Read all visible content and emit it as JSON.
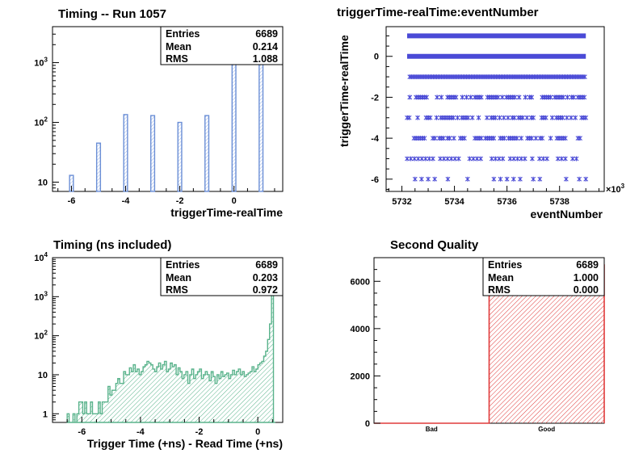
{
  "chart_data": [
    {
      "type": "bar",
      "title": "Timing -- Run 1057",
      "xlabel": "triggerTime-realTime",
      "ylabel": "",
      "xlim": [
        -6.7,
        1.8
      ],
      "ylim": [
        7,
        4000
      ],
      "log_y": true,
      "x_ticks": [
        -6,
        -4,
        -2,
        0
      ],
      "x_tick_labels": [
        "-6",
        "-4",
        "-2",
        "0"
      ],
      "y_ticks": [
        10,
        100,
        1000
      ],
      "y_tick_labels": [
        "10",
        "10^2",
        "10^3"
      ],
      "grid": false,
      "bar_color": "#6b8fd6",
      "x": [
        -6,
        -5,
        -4,
        -3,
        -2,
        -1,
        0,
        1
      ],
      "values": [
        13,
        45,
        135,
        130,
        100,
        130,
        3200,
        2900
      ],
      "stats": {
        "entries_label": "Entries",
        "entries": "6689",
        "mean_label": "Mean",
        "mean": "0.214",
        "rms_label": "RMS",
        "rms": "1.088"
      }
    },
    {
      "type": "scatter",
      "title": "triggerTime-realTime:eventNumber",
      "xlabel": "eventNumber",
      "ylabel": "triggerTime-realTime",
      "xlim": [
        5731.4,
        5739.7
      ],
      "ylim": [
        -6.6,
        1.45
      ],
      "x_ticks": [
        5732,
        5734,
        5736,
        5738
      ],
      "x_tick_labels": [
        "5732",
        "5734",
        "5736",
        "5738"
      ],
      "x_multiplier": "×10^3",
      "y_ticks": [
        -6,
        -4,
        -2,
        0
      ],
      "y_tick_labels": [
        "-6",
        "-4",
        "-2",
        "0"
      ],
      "grid": false,
      "marker_color": "#4a4ad6",
      "bands": [
        {
          "y": 1,
          "x_start": 5732.2,
          "x_end": 5739.0,
          "density": "solid"
        },
        {
          "y": 0,
          "x_start": 5732.2,
          "x_end": 5739.0,
          "density": "solid"
        },
        {
          "y": -1,
          "x_start": 5732.3,
          "x_end": 5739.0,
          "density": "dense"
        },
        {
          "y": -2,
          "x_start": 5732.3,
          "x_end": 5739.0,
          "density": "medium"
        },
        {
          "y": -3,
          "x_start": 5732.2,
          "x_end": 5739.0,
          "density": "medium"
        },
        {
          "y": -4,
          "x_start": 5732.3,
          "x_end": 5738.8,
          "density": "medium"
        },
        {
          "y": -5,
          "x_start": 5732.2,
          "x_end": 5738.7,
          "density": "sparse"
        },
        {
          "y": -6,
          "x_start": 5732.5,
          "x_end": 5739.0,
          "density": "very-sparse"
        }
      ]
    },
    {
      "type": "bar",
      "title": "Timing (ns included)",
      "xlabel": "Trigger Time (+ns) - Read Time (+ns)",
      "ylabel": "",
      "xlim": [
        -7.0,
        0.85
      ],
      "ylim": [
        0.6,
        10000
      ],
      "log_y": true,
      "x_ticks": [
        -6,
        -4,
        -2,
        0
      ],
      "x_tick_labels": [
        "-6",
        "-4",
        "-2",
        "0"
      ],
      "y_ticks": [
        1,
        10,
        100,
        1000,
        10000
      ],
      "y_tick_labels": [
        "1",
        "10",
        "10^2",
        "10^3",
        "10^4"
      ],
      "grid": false,
      "line_color": "#5ab38c",
      "bin_edges_range": [
        -6.5,
        0.6
      ],
      "values": [
        1,
        0,
        0,
        1,
        0,
        1,
        2,
        2,
        1,
        2,
        1,
        1,
        2,
        1,
        1,
        1,
        2,
        1,
        2,
        2,
        2,
        5,
        3,
        4,
        4,
        6,
        8,
        6,
        6,
        12,
        10,
        10,
        15,
        12,
        18,
        12,
        14,
        10,
        12,
        16,
        18,
        22,
        20,
        18,
        14,
        12,
        16,
        20,
        14,
        18,
        22,
        12,
        14,
        20,
        16,
        18,
        10,
        15,
        12,
        8,
        10,
        12,
        6,
        10,
        14,
        8,
        10,
        12,
        14,
        8,
        10,
        12,
        10,
        7,
        12,
        9,
        6,
        10,
        8,
        12,
        9,
        10,
        11,
        8,
        10,
        13,
        10,
        12,
        14,
        10,
        12,
        9,
        10,
        11,
        12,
        16,
        12,
        14,
        18,
        20,
        22,
        30,
        40,
        80,
        200,
        5000,
        0
      ],
      "stats": {
        "entries_label": "Entries",
        "entries": "6689",
        "mean_label": "Mean",
        "mean": "0.203",
        "rms_label": "RMS",
        "rms": "0.972"
      }
    },
    {
      "type": "bar",
      "title": "Second Quality",
      "xlabel": "",
      "ylabel": "",
      "categories": [
        "Bad",
        "Good"
      ],
      "values": [
        0,
        6689
      ],
      "ylim": [
        0,
        7000
      ],
      "y_ticks": [
        0,
        2000,
        4000,
        6000
      ],
      "y_tick_labels": [
        "0",
        "2000",
        "4000",
        "6000"
      ],
      "grid": false,
      "line_color": "#e03a3a",
      "stats": {
        "entries_label": "Entries",
        "entries": "6689",
        "mean_label": "Mean",
        "mean": "1.000",
        "rms_label": "RMS",
        "rms": "0.000"
      }
    }
  ]
}
